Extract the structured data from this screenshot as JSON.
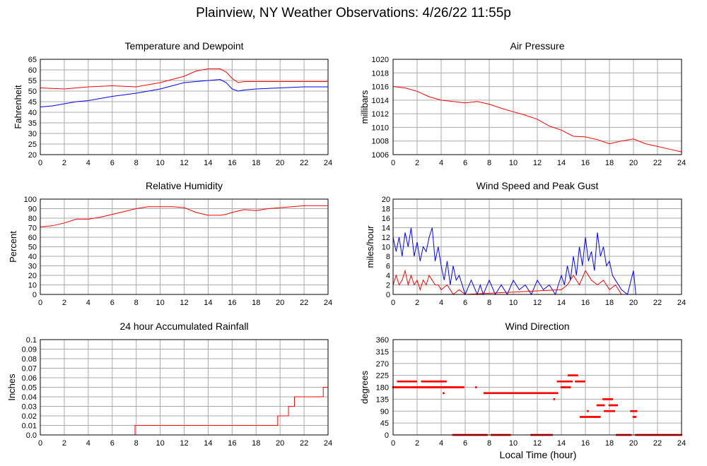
{
  "title": "Plainview, NY Weather Observations: 4/26/22 11:55p",
  "xlabel": "Local Time (hour)",
  "colors": {
    "red": "#ff0000",
    "blue": "#0000ff",
    "grid": "#aaaaaa"
  },
  "chart_data": [
    {
      "id": "temp",
      "type": "line",
      "title": "Temperature and Dewpoint",
      "ylabel": "Fahrenheit",
      "xlim": [
        0,
        24
      ],
      "ylim": [
        20,
        65
      ],
      "xticks": [
        0,
        2,
        4,
        6,
        8,
        10,
        12,
        14,
        16,
        18,
        20,
        22,
        24
      ],
      "yticks": [
        20,
        25,
        30,
        35,
        40,
        45,
        50,
        55,
        60,
        65
      ],
      "series": [
        {
          "color": "red",
          "x": [
            0,
            2,
            4,
            6,
            8,
            10,
            11,
            12,
            13,
            14,
            15,
            15.5,
            16,
            16.5,
            17,
            18,
            20,
            22,
            24
          ],
          "y": [
            51.5,
            51,
            52,
            52.5,
            52,
            54,
            55.5,
            57,
            59.5,
            60.5,
            60.5,
            59,
            56,
            54,
            54.5,
            54.5,
            54.5,
            54.5,
            54.5
          ]
        },
        {
          "color": "blue",
          "x": [
            0,
            1,
            2,
            3,
            4,
            6,
            8,
            10,
            11,
            12,
            13,
            14,
            15,
            15.5,
            16,
            16.5,
            17,
            18,
            20,
            22,
            24
          ],
          "y": [
            42.5,
            43,
            44,
            45,
            45.5,
            47.5,
            49,
            51,
            52.5,
            54,
            54.5,
            55,
            55.5,
            54,
            51,
            50,
            50.5,
            51,
            51.5,
            52,
            52
          ]
        }
      ]
    },
    {
      "id": "pressure",
      "type": "line",
      "title": "Air Pressure",
      "ylabel": "millibars",
      "xlim": [
        0,
        24
      ],
      "ylim": [
        1006,
        1020
      ],
      "xticks": [
        0,
        2,
        4,
        6,
        8,
        10,
        12,
        14,
        16,
        18,
        20,
        22,
        24
      ],
      "yticks": [
        1006,
        1008,
        1010,
        1012,
        1014,
        1016,
        1018,
        1020
      ],
      "series": [
        {
          "color": "red",
          "x": [
            0,
            1,
            2,
            3,
            4,
            5,
            6,
            7,
            8,
            9,
            10,
            11,
            12,
            13,
            14,
            15,
            16,
            17,
            18,
            19,
            20,
            21,
            22,
            23,
            24
          ],
          "y": [
            1016,
            1015.8,
            1015.3,
            1014.5,
            1014,
            1013.8,
            1013.6,
            1013.8,
            1013.4,
            1012.8,
            1012.3,
            1011.8,
            1011.2,
            1010.2,
            1009.6,
            1008.7,
            1008.6,
            1008.2,
            1007.6,
            1008,
            1008.3,
            1007.6,
            1007.2,
            1006.8,
            1006.4
          ]
        }
      ]
    },
    {
      "id": "humidity",
      "type": "line",
      "title": "Relative Humidity",
      "ylabel": "Percent",
      "xlim": [
        0,
        24
      ],
      "ylim": [
        0,
        100
      ],
      "xticks": [
        0,
        2,
        4,
        6,
        8,
        10,
        12,
        14,
        16,
        18,
        20,
        22,
        24
      ],
      "yticks": [
        0,
        10,
        20,
        30,
        40,
        50,
        60,
        70,
        80,
        90,
        100
      ],
      "series": [
        {
          "color": "red",
          "x": [
            0,
            1,
            2,
            3,
            4,
            5,
            6,
            7,
            8,
            9,
            10,
            11,
            12,
            13,
            14,
            15,
            15.5,
            16,
            17,
            18,
            19,
            20,
            21,
            22,
            23,
            24
          ],
          "y": [
            71,
            72,
            75,
            79,
            79,
            81,
            84,
            87,
            90,
            92,
            92,
            92,
            91,
            86,
            83,
            83,
            84,
            86,
            89,
            88,
            90,
            91,
            92,
            93,
            93,
            93
          ]
        }
      ]
    },
    {
      "id": "wind",
      "type": "line",
      "title": "Wind Speed and Peak Gust",
      "ylabel": "miles/hour",
      "xlim": [
        0,
        24
      ],
      "ylim": [
        0,
        20
      ],
      "xticks": [
        0,
        2,
        4,
        6,
        8,
        10,
        12,
        14,
        16,
        18,
        20,
        22,
        24
      ],
      "yticks": [
        0,
        2,
        4,
        6,
        8,
        10,
        12,
        14,
        16,
        18,
        20
      ],
      "series": [
        {
          "color": "blue",
          "x": [
            0,
            0.25,
            0.5,
            0.75,
            1,
            1.25,
            1.5,
            1.75,
            2,
            2.25,
            2.5,
            2.75,
            3,
            3.25,
            3.5,
            3.75,
            4,
            4.25,
            4.5,
            4.75,
            5,
            5.25,
            5.5,
            6,
            6.5,
            7,
            7.25,
            7.5,
            8,
            8.5,
            9,
            9.5,
            10,
            10.5,
            11,
            11.5,
            12,
            12.5,
            13,
            13.5,
            14,
            14.25,
            14.5,
            14.75,
            15,
            15.25,
            15.5,
            15.75,
            16,
            16.25,
            16.5,
            16.75,
            17,
            17.25,
            17.5,
            17.75,
            18,
            18.25,
            18.5,
            18.75,
            19,
            19.5,
            20,
            20.2,
            21,
            22,
            23,
            24
          ],
          "y": [
            12,
            9,
            12,
            8,
            13,
            10,
            14,
            8,
            11,
            7,
            10,
            9,
            12,
            14,
            7,
            10,
            6,
            3,
            7,
            2,
            6,
            3,
            4,
            0,
            3,
            0,
            2,
            0,
            3,
            0,
            2,
            0,
            3,
            1,
            2,
            0,
            3,
            1,
            2,
            0,
            4,
            2,
            6,
            3,
            8,
            4,
            10,
            6,
            12,
            7,
            9,
            5,
            13,
            8,
            10,
            6,
            7,
            4,
            3,
            2,
            1,
            0,
            5,
            0,
            0,
            0,
            0,
            0
          ]
        },
        {
          "color": "red",
          "x": [
            0,
            0.25,
            0.5,
            0.75,
            1,
            1.25,
            1.5,
            1.75,
            2,
            2.25,
            2.5,
            2.75,
            3,
            3.25,
            3.5,
            3.75,
            4,
            4.5,
            5,
            5.5,
            6,
            14,
            14.5,
            15,
            15.5,
            16,
            16.5,
            17,
            17.5,
            18,
            18.5,
            19,
            20,
            21,
            22,
            23,
            24
          ],
          "y": [
            2,
            4,
            2,
            3,
            5,
            2,
            4,
            2,
            3,
            1,
            3,
            2,
            4,
            3,
            2,
            2,
            1,
            2,
            0,
            1,
            0,
            1,
            2,
            4,
            2,
            5,
            3,
            2,
            3,
            1,
            2,
            0,
            0,
            0,
            0,
            0,
            0
          ]
        }
      ]
    },
    {
      "id": "rain",
      "type": "line",
      "title": "24 hour Accumulated Rainfall",
      "ylabel": "Inches",
      "xlim": [
        0,
        24
      ],
      "ylim": [
        0,
        0.1
      ],
      "xticks": [
        0,
        2,
        4,
        6,
        8,
        10,
        12,
        14,
        16,
        18,
        20,
        22,
        24
      ],
      "yticks": [
        0,
        0.01,
        0.02,
        0.03,
        0.04,
        0.05,
        0.06,
        0.07,
        0.08,
        0.09,
        0.1
      ],
      "yticklabels": [
        "0.0",
        "0.01",
        "0.02",
        "0.03",
        "0.04",
        "0.05",
        "0.06",
        "0.07",
        "0.08",
        "0.09",
        "0.1"
      ],
      "series": [
        {
          "color": "red",
          "step": true,
          "x": [
            0,
            7.9,
            7.9,
            19.8,
            19.8,
            20.7,
            20.7,
            21.2,
            21.2,
            23.6,
            23.6,
            24
          ],
          "y": [
            0,
            0,
            0.01,
            0.01,
            0.02,
            0.02,
            0.03,
            0.03,
            0.04,
            0.04,
            0.05,
            0.05
          ]
        }
      ]
    },
    {
      "id": "direction",
      "type": "scatter",
      "title": "Wind Direction",
      "ylabel": "degrees",
      "xlim": [
        0,
        24
      ],
      "ylim": [
        0,
        360
      ],
      "xticks": [
        0,
        2,
        4,
        6,
        8,
        10,
        12,
        14,
        16,
        18,
        20,
        22,
        24
      ],
      "yticks": [
        0,
        45,
        90,
        135,
        180,
        225,
        270,
        315,
        360
      ],
      "series": [
        {
          "color": "red",
          "points": [
            [
              0,
              180,
              4.5,
              0.1
            ],
            [
              0.4,
              202,
              1.6,
              0.1
            ],
            [
              1.6,
              180,
              2.6,
              0.1
            ],
            [
              2.4,
              202,
              1.8,
              0.1
            ],
            [
              3.0,
              180,
              1.4,
              0.1
            ],
            [
              3.4,
              202,
              1.0,
              0.1
            ],
            [
              3.9,
              180,
              1.2,
              0.1
            ],
            [
              4.5,
              180,
              1.4,
              0.1
            ],
            [
              5.0,
              0,
              2.8,
              0.1
            ],
            [
              7.6,
              158,
              2.6,
              0.1
            ],
            [
              8.2,
              0,
              1.6,
              0.1
            ],
            [
              10.2,
              158,
              2.2,
              0.1
            ],
            [
              11.5,
              0,
              1.8,
              0.1
            ],
            [
              12.5,
              158,
              1.2,
              0.1
            ],
            [
              13.7,
              202,
              1.2,
              0.1
            ],
            [
              14.0,
              180,
              0.8,
              0.1
            ],
            [
              14.6,
              225,
              0.8,
              0.1
            ],
            [
              15.2,
              202,
              0.8,
              0.1
            ],
            [
              15.6,
              68,
              1.6,
              0.1
            ],
            [
              17.0,
              112,
              0.6,
              0.1
            ],
            [
              17.5,
              135,
              0.8,
              0.1
            ],
            [
              17.6,
              90,
              0.8,
              0.1
            ],
            [
              18.0,
              112,
              0.7,
              0.1
            ],
            [
              18.6,
              0,
              1.2,
              0.1
            ],
            [
              19.8,
              90,
              0.5,
              0.1
            ],
            [
              20.0,
              68,
              0.2,
              0.1
            ],
            [
              20.2,
              0,
              3.8,
              0.1
            ]
          ],
          "extra": [
            [
              0.3,
              180
            ],
            [
              4.2,
              158
            ],
            [
              13.4,
              135
            ],
            [
              16.2,
              90
            ],
            [
              16.8,
              68
            ],
            [
              17.2,
              68
            ],
            [
              18.4,
              90
            ],
            [
              6.9,
              180
            ]
          ]
        }
      ]
    }
  ]
}
